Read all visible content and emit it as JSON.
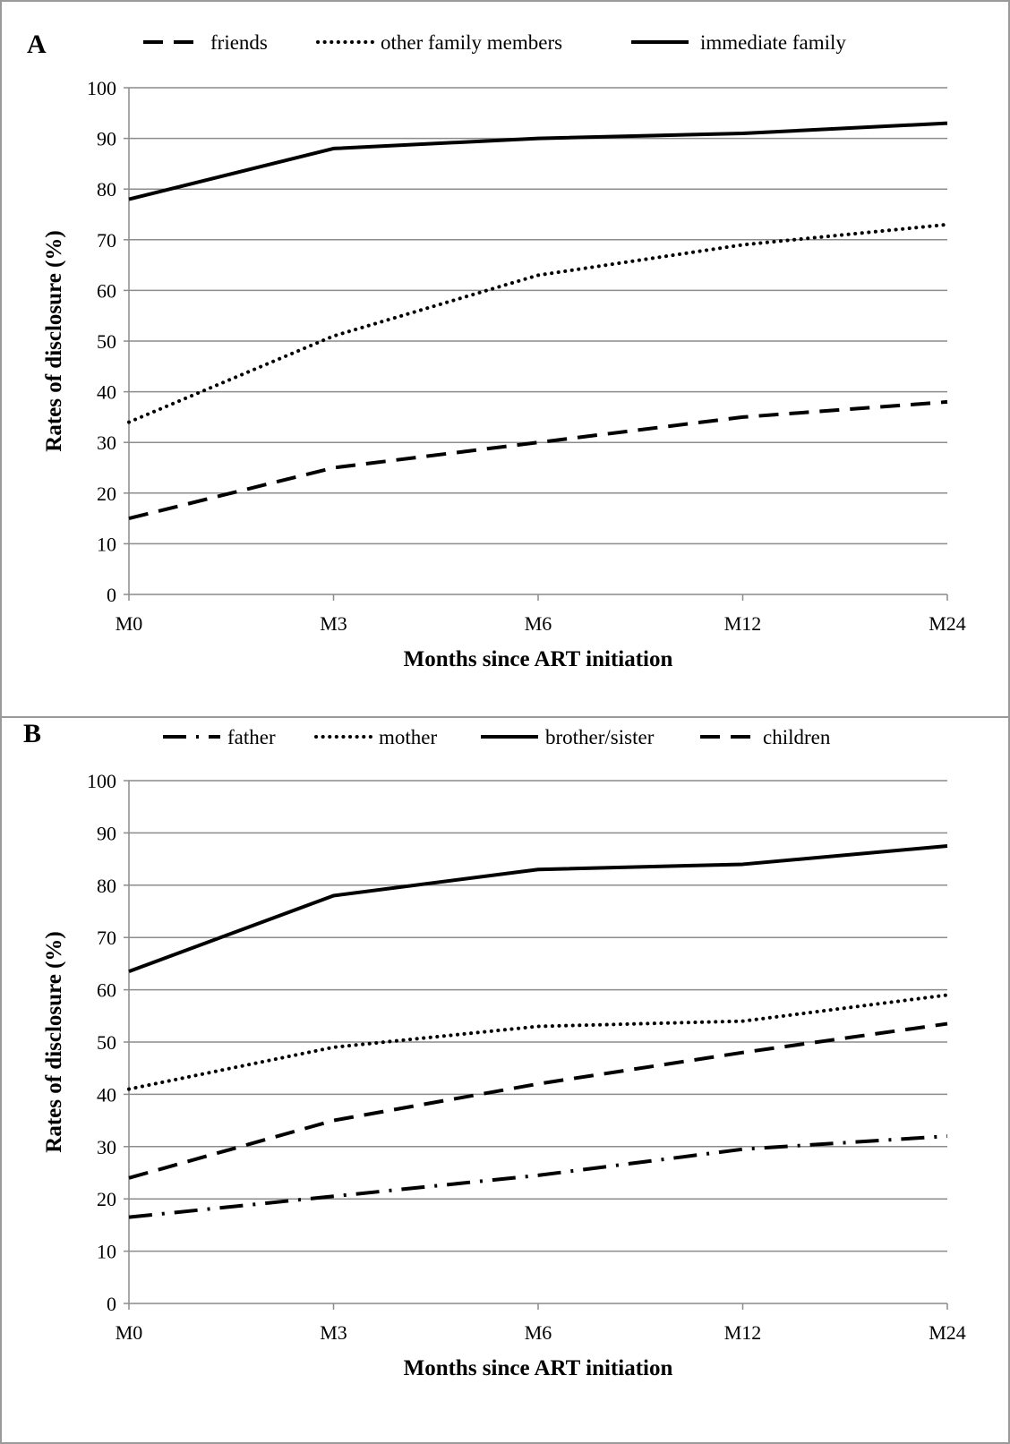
{
  "chart_data": [
    {
      "type": "line",
      "panel_label": "A",
      "title": "",
      "xlabel": "Months since ART initiation",
      "ylabel": "Rates of disclosure (%)",
      "categories": [
        "M0",
        "M3",
        "M6",
        "M12",
        "M24"
      ],
      "ylim": [
        0,
        100
      ],
      "yticks": [
        0,
        10,
        20,
        30,
        40,
        50,
        60,
        70,
        80,
        90,
        100
      ],
      "grid": true,
      "legend_position": "top",
      "series": [
        {
          "name": "friends",
          "style": "dashed",
          "values": [
            15,
            25,
            30,
            35,
            38
          ]
        },
        {
          "name": "other family members",
          "style": "dotted",
          "values": [
            34,
            51,
            63,
            69,
            73
          ]
        },
        {
          "name": "immediate family",
          "style": "solid",
          "values": [
            78,
            88,
            90,
            91,
            93
          ]
        }
      ]
    },
    {
      "type": "line",
      "panel_label": "B",
      "title": "",
      "xlabel": "Months since ART initiation",
      "ylabel": "Rates of disclosure (%)",
      "categories": [
        "M0",
        "M3",
        "M6",
        "M12",
        "M24"
      ],
      "ylim": [
        0,
        100
      ],
      "yticks": [
        0,
        10,
        20,
        30,
        40,
        50,
        60,
        70,
        80,
        90,
        100
      ],
      "grid": true,
      "legend_position": "top",
      "series": [
        {
          "name": "father",
          "style": "dashdot",
          "values": [
            16.5,
            20.5,
            24.5,
            29.5,
            32
          ]
        },
        {
          "name": "mother",
          "style": "dotted",
          "values": [
            41,
            49,
            53,
            54,
            59
          ]
        },
        {
          "name": "brother/sister",
          "style": "solid",
          "values": [
            63.5,
            78,
            83,
            84,
            87.5
          ]
        },
        {
          "name": "children",
          "style": "dashed",
          "values": [
            24,
            35,
            42,
            48,
            53.5
          ]
        }
      ]
    }
  ],
  "colors": {
    "line": "#000000",
    "grid": "#8c8c8c",
    "axis": "#8c8c8c",
    "border": "#9a9a9a"
  }
}
